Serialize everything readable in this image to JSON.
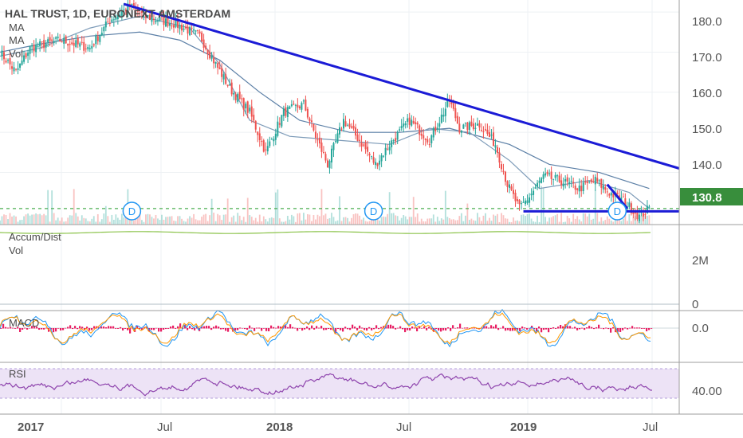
{
  "header": {
    "symbol_line": "HAL TRUST, 1D, EURONEXT AMSTERDAM",
    "indicators": [
      "MA",
      "MA",
      "Vol"
    ]
  },
  "panes": {
    "accum_label": "Accum/Dist",
    "vol_label": "Vol",
    "macd_label": "MACD",
    "rsi_label": "RSI"
  },
  "price_tag": "130.8",
  "colors": {
    "up": "#26a69a",
    "down": "#ef5350",
    "trendline": "#1b1bd6",
    "ma_slow": "#5b7fa6",
    "ma_fast": "#7d9bb8",
    "support_dashed": "#4caf50",
    "price_tag_bg": "#388e3c",
    "rsi": "#8e44ad",
    "rsi_band": "#ede3f6",
    "macd_hist": "#e91e63",
    "macd_line": "#2196f3",
    "signal_line": "#ff9800",
    "accum_line": "#8bc34a",
    "dividend": "#2196f3"
  },
  "chart_data": [
    {
      "type": "candlestick",
      "title": "HAL TRUST, 1D, EURONEXT AMSTERDAM",
      "ylim": [
        127,
        183
      ],
      "price_axis": [
        "180.0",
        "170.0",
        "160.0",
        "150.0",
        "140.0",
        "130.0"
      ],
      "x_ticks": [
        "2017",
        "Jul",
        "2018",
        "Jul",
        "2019",
        "Jul"
      ],
      "last_price": 130.8,
      "path_anchors": [
        [
          0,
          170
        ],
        [
          8,
          165
        ],
        [
          15,
          171
        ],
        [
          30,
          173
        ],
        [
          45,
          171
        ],
        [
          55,
          178
        ],
        [
          65,
          181.5
        ],
        [
          72,
          179
        ],
        [
          88,
          177
        ],
        [
          100,
          174
        ],
        [
          108,
          167
        ],
        [
          115,
          161
        ],
        [
          125,
          155
        ],
        [
          133,
          145
        ],
        [
          142,
          155
        ],
        [
          152,
          157
        ],
        [
          158,
          149
        ],
        [
          164,
          142
        ],
        [
          172,
          153
        ],
        [
          180,
          148
        ],
        [
          188,
          142
        ],
        [
          195,
          147
        ],
        [
          205,
          153
        ],
        [
          215,
          148
        ],
        [
          225,
          158
        ],
        [
          230,
          151
        ],
        [
          240,
          152
        ],
        [
          248,
          147
        ],
        [
          254,
          137
        ],
        [
          260,
          131
        ],
        [
          265,
          134
        ],
        [
          272,
          139
        ],
        [
          280,
          138
        ],
        [
          290,
          136
        ],
        [
          298,
          138
        ],
        [
          305,
          135
        ],
        [
          312,
          133
        ],
        [
          320,
          129
        ],
        [
          325,
          131
        ]
      ],
      "moving_averages": [
        {
          "name": "MA",
          "points": [
            [
              0,
              170
            ],
            [
              20,
              172
            ],
            [
              45,
              174
            ],
            [
              70,
              175
            ],
            [
              90,
              173
            ],
            [
              110,
              168
            ],
            [
              130,
              160
            ],
            [
              150,
              153
            ],
            [
              175,
              150
            ],
            [
              200,
              150
            ],
            [
              225,
              151
            ],
            [
              255,
              147
            ],
            [
              275,
              142
            ],
            [
              300,
              140
            ],
            [
              325,
              136
            ]
          ]
        },
        {
          "name": "MA",
          "points": [
            [
              0,
              169
            ],
            [
              20,
              171
            ],
            [
              45,
              176
            ],
            [
              70,
              179
            ],
            [
              95,
              176
            ],
            [
              110,
              167
            ],
            [
              125,
              153
            ],
            [
              145,
              149
            ],
            [
              170,
              148
            ],
            [
              195,
              147
            ],
            [
              215,
              151
            ],
            [
              235,
              150
            ],
            [
              255,
              143
            ],
            [
              270,
              136
            ],
            [
              295,
              138
            ],
            [
              315,
              135
            ],
            [
              325,
              131
            ]
          ]
        }
      ],
      "trendlines": [
        {
          "from": [
            62,
            182
          ],
          "to": [
            340,
            141
          ]
        },
        {
          "from": [
            262,
            130.3
          ],
          "to": [
            340,
            130.3
          ]
        },
        {
          "from": [
            304,
            137
          ],
          "to": [
            314,
            131
          ]
        }
      ],
      "dashed_level": 131,
      "dividend_markers": [
        {
          "label": "D",
          "day": 66
        },
        {
          "label": "D",
          "day": 187
        },
        {
          "label": "D",
          "day": 309
        }
      ]
    },
    {
      "type": "area",
      "title": "Accum/Dist",
      "y_ticks": [
        "2M",
        "0"
      ]
    },
    {
      "type": "bar",
      "title": "MACD",
      "y_ticks": [
        "0.0"
      ]
    },
    {
      "type": "line",
      "title": "RSI",
      "y_ticks": [
        "40.00"
      ],
      "band": [
        30,
        70
      ]
    }
  ]
}
